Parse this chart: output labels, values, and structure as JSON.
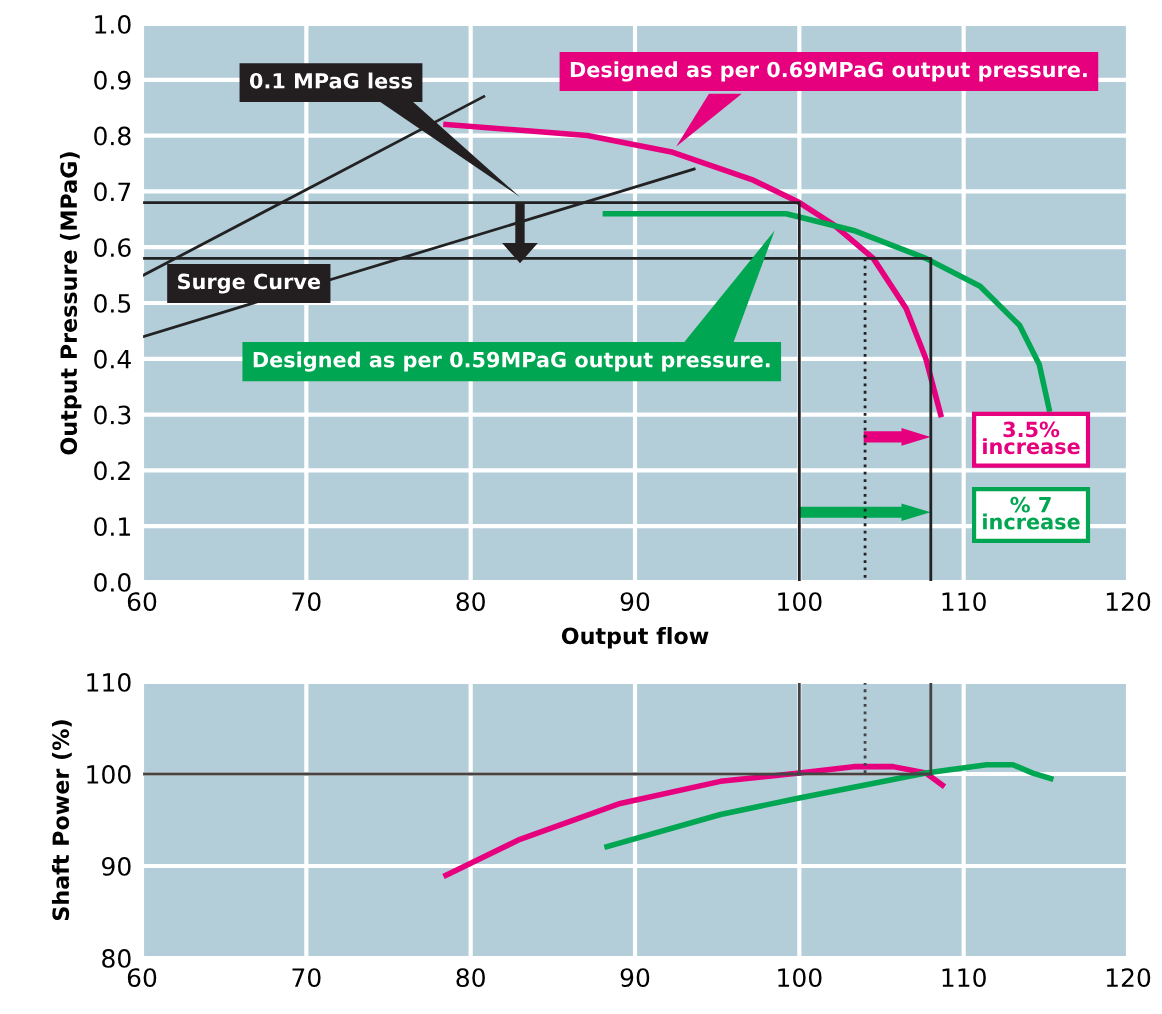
{
  "chart_data": [
    {
      "type": "line",
      "xlabel": "Output flow",
      "ylabel": "Output Pressure (MPaG)",
      "xlim": [
        60,
        120
      ],
      "xticks": [
        60,
        70,
        80,
        90,
        100,
        110,
        120
      ],
      "ylim": [
        0.0,
        1.0
      ],
      "yticks": [
        {
          "value": 0,
          "label": "0.0"
        },
        0.1,
        0.2,
        0.3,
        0.4,
        0.5,
        0.6,
        0.7,
        0.8,
        0.9,
        {
          "value": 1,
          "label": "1.0"
        }
      ],
      "grid": true,
      "legend": false,
      "series": [
        {
          "color": "#e6007e",
          "x": [
            78.5,
            87.1,
            92.3,
            97.2,
            100,
            102.1,
            104.5,
            106.5,
            107.7,
            108.6
          ],
          "values": [
            0.82,
            0.8,
            0.77,
            0.72,
            0.68,
            0.64,
            0.58,
            0.49,
            0.4,
            0.3
          ]
        },
        {
          "color": "#00a651",
          "x": [
            88.2,
            95.2,
            99.2,
            103.3,
            107.7,
            111,
            113.4,
            114.6,
            115.2
          ],
          "values": [
            0.66,
            0.66,
            0.66,
            0.63,
            0.58,
            0.53,
            0.46,
            0.39,
            0.31
          ]
        },
        {
          "color": "#222222",
          "x": [
            60.1,
            80.8
          ],
          "values": [
            0.55,
            0.87
          ]
        },
        {
          "color": "#222222",
          "x": [
            60.1,
            93.6
          ],
          "values": [
            0.44,
            0.74
          ]
        },
        {
          "color": "#222222",
          "x": [
            60,
            100,
            100
          ],
          "values": [
            0.68,
            0.68,
            0.0
          ]
        },
        {
          "color": "#222222",
          "x": [
            60,
            108,
            108
          ],
          "values": [
            0.58,
            0.58,
            0.0
          ]
        },
        {
          "color": "#222222",
          "line_style": "dotted",
          "x": [
            104,
            104
          ],
          "values": [
            0.58,
            0.0
          ]
        }
      ],
      "annotations": [
        "0.1 MPaG less",
        "Surge Curve",
        "Designed as per 0.69MPaG output pressure.",
        "Designed as per 0.59MPaG output pressure.",
        "3.5%\nincrease",
        "% 7\nincrease"
      ]
    },
    {
      "type": "line",
      "ylabel": "Shaft Power (%)",
      "xlim": [
        60,
        120
      ],
      "xticks": [
        60,
        70,
        80,
        90,
        100,
        110,
        120
      ],
      "ylim": [
        80,
        110
      ],
      "yticks": [
        80,
        90,
        100,
        110
      ],
      "grid": true,
      "legend": false,
      "series": [
        {
          "color": "#e6007e",
          "x": [
            78.5,
            83,
            89.1,
            95.2,
            100,
            103.3,
            105.7,
            107.7,
            108.7
          ],
          "values": [
            89.0,
            92.9,
            96.8,
            99.2,
            100.1,
            100.8,
            100.8,
            100.1,
            98.8
          ]
        },
        {
          "color": "#00a651",
          "x": [
            88.3,
            95.2,
            100,
            107.7,
            111.4,
            113,
            114.2,
            115.3
          ],
          "values": [
            92.1,
            95.6,
            97.4,
            100.1,
            101.0,
            101.0,
            100.1,
            99.5
          ]
        },
        {
          "color": "#444444",
          "x": [
            60,
            108
          ],
          "values": [
            100,
            100
          ]
        },
        {
          "color": "#444444",
          "x": [
            100,
            100
          ],
          "values": [
            110,
            100
          ]
        },
        {
          "color": "#444444",
          "x": [
            108,
            108
          ],
          "values": [
            110,
            100
          ]
        },
        {
          "color": "#444444",
          "line_style": "dotted",
          "x": [
            104,
            104
          ],
          "values": [
            110,
            100
          ]
        }
      ]
    }
  ]
}
